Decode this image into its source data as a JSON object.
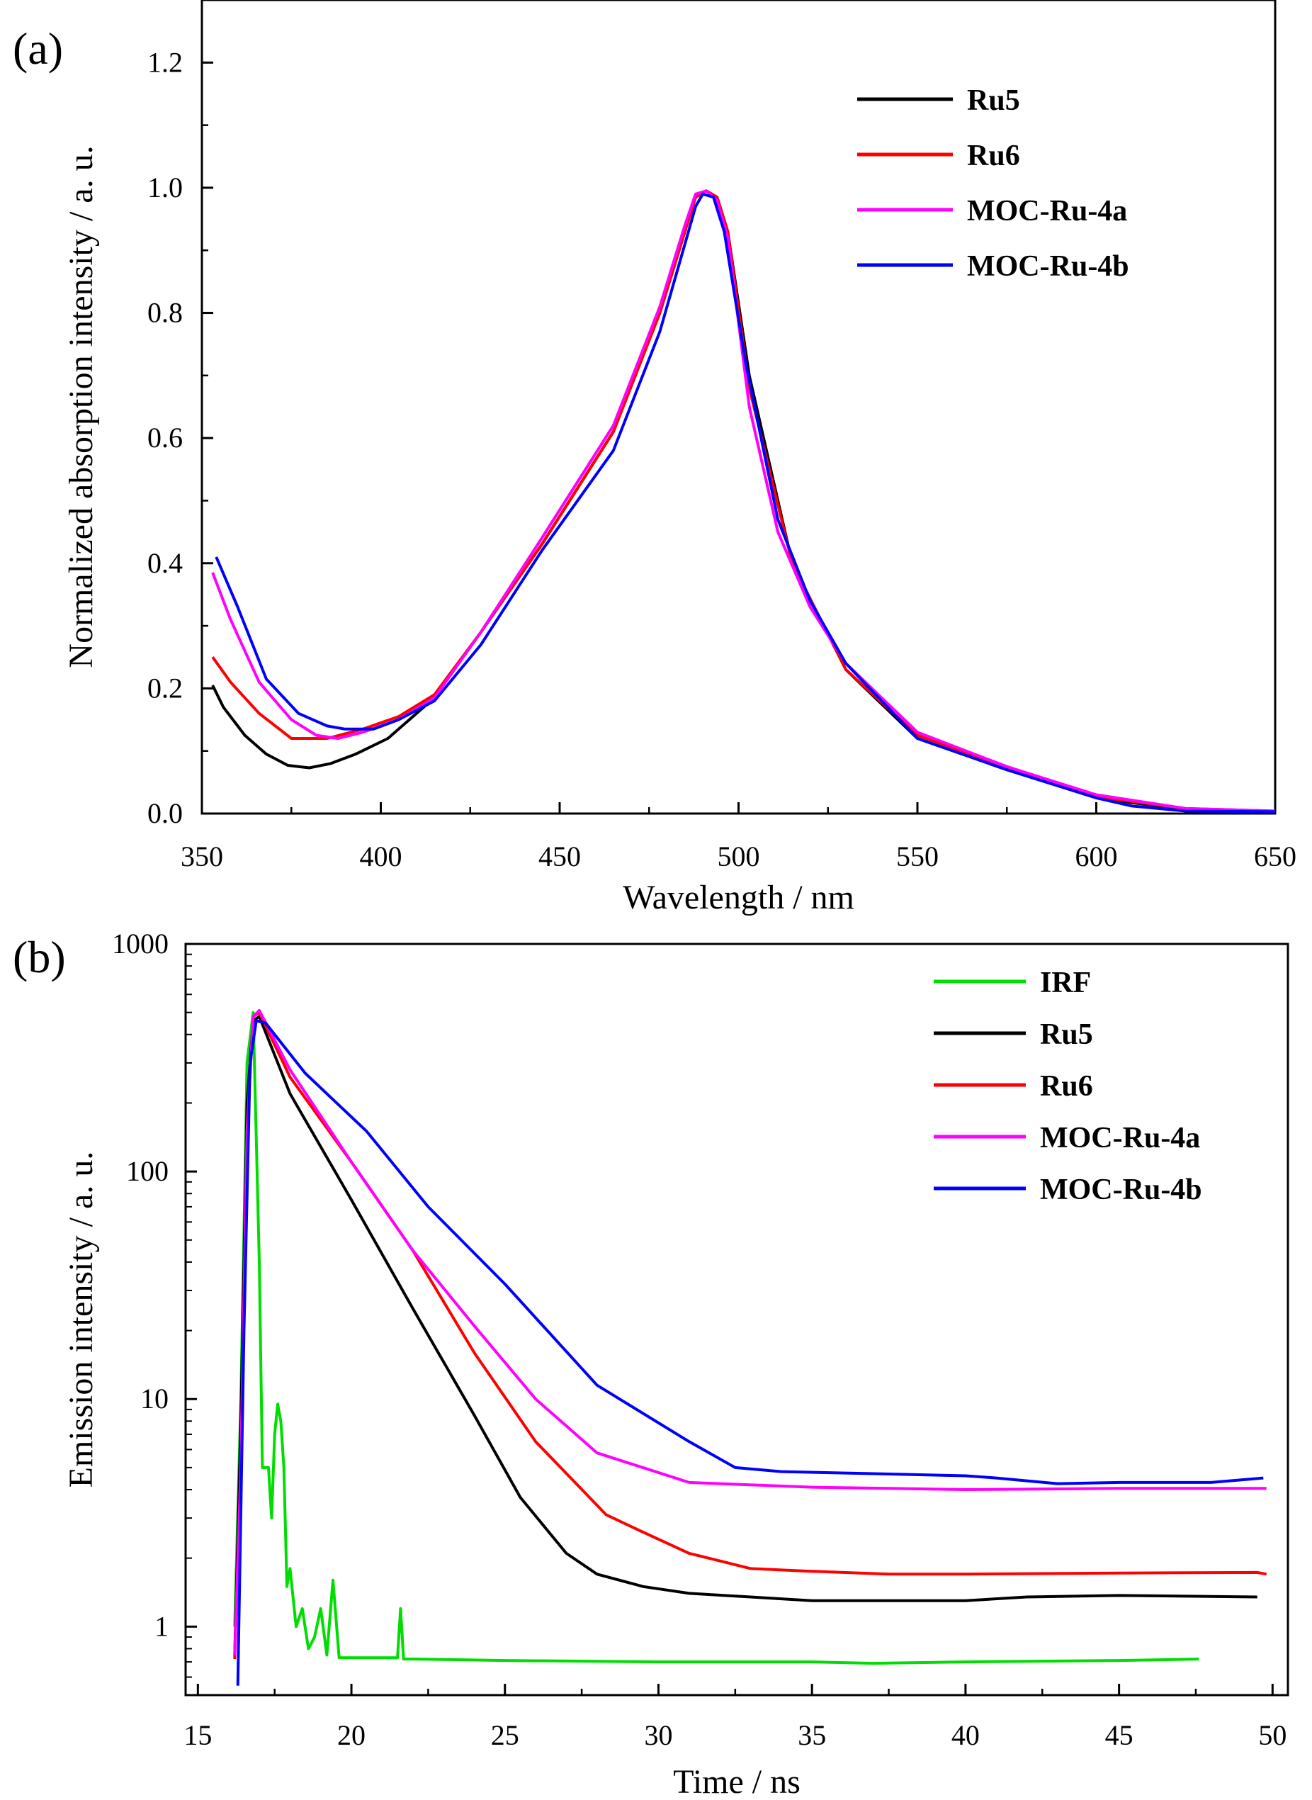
{
  "chart_data": [
    {
      "type": "line",
      "panel_label": "(a)",
      "title": "",
      "xlabel": "Wavelength / nm",
      "ylabel": "Normalized absorption intensity / a. u.",
      "xlim": [
        350,
        650
      ],
      "ylim": [
        0,
        1.3
      ],
      "xticks": [
        "350",
        "400",
        "450",
        "500",
        "550",
        "600",
        "650"
      ],
      "yticks": [
        "0.0",
        "0.2",
        "0.4",
        "0.6",
        "0.8",
        "1.0",
        "1.2"
      ],
      "legend_position": "top-right",
      "series": [
        {
          "name": "Ru5",
          "color": "#000000",
          "x": [
            353,
            356,
            362,
            368,
            374,
            380,
            386,
            393,
            402,
            414,
            428,
            445,
            465,
            478,
            485,
            488,
            491,
            494,
            497,
            503,
            515,
            530,
            550,
            575,
            600,
            625,
            650
          ],
          "y": [
            0.205,
            0.17,
            0.125,
            0.095,
            0.077,
            0.073,
            0.08,
            0.095,
            0.12,
            0.18,
            0.29,
            0.43,
            0.61,
            0.8,
            0.93,
            0.985,
            0.995,
            0.985,
            0.93,
            0.7,
            0.4,
            0.23,
            0.12,
            0.07,
            0.025,
            0.006,
            0.003
          ]
        },
        {
          "name": "Ru6",
          "color": "#ff0000",
          "x": [
            353,
            358,
            366,
            375,
            385,
            395,
            405,
            415,
            428,
            445,
            465,
            478,
            485,
            488,
            491,
            494,
            497,
            503,
            515,
            530,
            550,
            575,
            600,
            625,
            650
          ],
          "y": [
            0.25,
            0.21,
            0.16,
            0.12,
            0.12,
            0.135,
            0.155,
            0.19,
            0.29,
            0.43,
            0.61,
            0.8,
            0.93,
            0.985,
            0.995,
            0.985,
            0.93,
            0.68,
            0.4,
            0.23,
            0.125,
            0.075,
            0.027,
            0.008,
            0.004
          ]
        },
        {
          "name": "MOC-Ru-4a",
          "color": "#ff00ff",
          "x": [
            353,
            358,
            366,
            375,
            382,
            388,
            395,
            405,
            415,
            428,
            445,
            465,
            478,
            485,
            488,
            491,
            494,
            497,
            503,
            511,
            520,
            530,
            550,
            575,
            600,
            625,
            650
          ],
          "y": [
            0.385,
            0.31,
            0.21,
            0.15,
            0.125,
            0.12,
            0.13,
            0.15,
            0.185,
            0.29,
            0.44,
            0.62,
            0.81,
            0.94,
            0.99,
            0.995,
            0.98,
            0.92,
            0.65,
            0.45,
            0.33,
            0.24,
            0.13,
            0.075,
            0.03,
            0.008,
            0.004
          ]
        },
        {
          "name": "MOC-Ru-4b",
          "color": "#0000ff",
          "x": [
            354,
            360,
            368,
            377,
            385,
            390,
            398,
            405,
            415,
            428,
            445,
            465,
            478,
            485,
            488,
            490,
            493,
            496,
            502,
            511,
            520,
            530,
            550,
            575,
            600,
            610,
            625,
            650
          ],
          "y": [
            0.41,
            0.33,
            0.215,
            0.16,
            0.14,
            0.135,
            0.135,
            0.15,
            0.18,
            0.27,
            0.42,
            0.58,
            0.77,
            0.91,
            0.97,
            0.99,
            0.985,
            0.93,
            0.72,
            0.47,
            0.34,
            0.24,
            0.12,
            0.07,
            0.025,
            0.012,
            0.004,
            0.003
          ]
        }
      ]
    },
    {
      "type": "line",
      "panel_label": "(b)",
      "title": "",
      "xlabel": "Time / ns",
      "ylabel": "Emission intensity / a. u.",
      "xlim": [
        14.6,
        50.5
      ],
      "ylim": [
        0.5,
        1000
      ],
      "yscale": "log",
      "xticks": [
        "15",
        "20",
        "25",
        "30",
        "35",
        "40",
        "45",
        "50"
      ],
      "yticks": [
        "1",
        "10",
        "100",
        "1000"
      ],
      "yticks_values": [
        1,
        10,
        100,
        1000
      ],
      "legend_position": "top-right",
      "series": [
        {
          "name": "IRF",
          "color": "#00dd00",
          "x": [
            16.2,
            16.4,
            16.6,
            16.8,
            17.0,
            17.1,
            17.2,
            17.3,
            17.4,
            17.5,
            17.6,
            17.7,
            17.8,
            17.9,
            18.0,
            18.2,
            18.4,
            18.6,
            18.8,
            19.0,
            19.2,
            19.4,
            19.6,
            20,
            21.5,
            21.6,
            21.7,
            22,
            25,
            30,
            35,
            37,
            40,
            45,
            47.6
          ],
          "y": [
            1,
            10,
            300,
            500,
            40,
            5,
            5,
            5,
            3,
            7,
            9.5,
            8,
            5,
            1.5,
            1.8,
            1,
            1.2,
            0.8,
            0.9,
            1.2,
            0.75,
            1.6,
            0.73,
            0.73,
            0.73,
            1.2,
            0.72,
            0.72,
            0.71,
            0.7,
            0.7,
            0.69,
            0.7,
            0.71,
            0.72
          ]
        },
        {
          "name": "Ru5",
          "color": "#000000",
          "x": [
            16.2,
            16.4,
            16.6,
            16.8,
            17.0,
            18.0,
            20.0,
            22.0,
            24.0,
            25.5,
            27.0,
            28.0,
            29.5,
            31.0,
            33.0,
            35.0,
            37.0,
            40.0,
            42.0,
            45.0,
            49.5
          ],
          "y": [
            0.75,
            8,
            200,
            460,
            480,
            220,
            75,
            25,
            8.5,
            3.7,
            2.1,
            1.7,
            1.5,
            1.4,
            1.35,
            1.3,
            1.3,
            1.3,
            1.35,
            1.37,
            1.35
          ]
        },
        {
          "name": "Ru6",
          "color": "#ff0000",
          "x": [
            16.2,
            16.4,
            16.6,
            16.8,
            17.0,
            18.0,
            20.0,
            22.0,
            24.0,
            26.0,
            28.3,
            29.5,
            31.0,
            33.0,
            35.0,
            37.5,
            40.0,
            45.0,
            49.5,
            49.8
          ],
          "y": [
            0.72,
            5,
            150,
            480,
            500,
            260,
            110,
            45,
            16,
            6.5,
            3.1,
            2.6,
            2.1,
            1.8,
            1.75,
            1.7,
            1.7,
            1.72,
            1.73,
            1.7
          ]
        },
        {
          "name": "MOC-Ru-4a",
          "color": "#ff00ff",
          "x": [
            16.2,
            16.4,
            16.6,
            16.8,
            17.0,
            18.0,
            20.0,
            22.0,
            24.0,
            26.0,
            28.0,
            31.0,
            35.0,
            40.0,
            45.0,
            49.8
          ],
          "y": [
            0.75,
            5,
            150,
            480,
            510,
            280,
            110,
            45,
            21,
            10,
            5.8,
            4.3,
            4.1,
            4.0,
            4.05,
            4.05
          ]
        },
        {
          "name": "MOC-Ru-4b",
          "color": "#0000ff",
          "x": [
            16.3,
            16.5,
            16.7,
            16.9,
            17.2,
            18.5,
            20.5,
            22.5,
            25.0,
            28.0,
            31.0,
            32.5,
            34.0,
            37.0,
            40.0,
            41.0,
            43.0,
            45.0,
            48.0,
            49.7
          ],
          "y": [
            0.55,
            20,
            300,
            460,
            450,
            270,
            150,
            70,
            32,
            11.5,
            6.5,
            5,
            4.8,
            4.7,
            4.6,
            4.5,
            4.25,
            4.3,
            4.3,
            4.5
          ]
        }
      ]
    }
  ]
}
